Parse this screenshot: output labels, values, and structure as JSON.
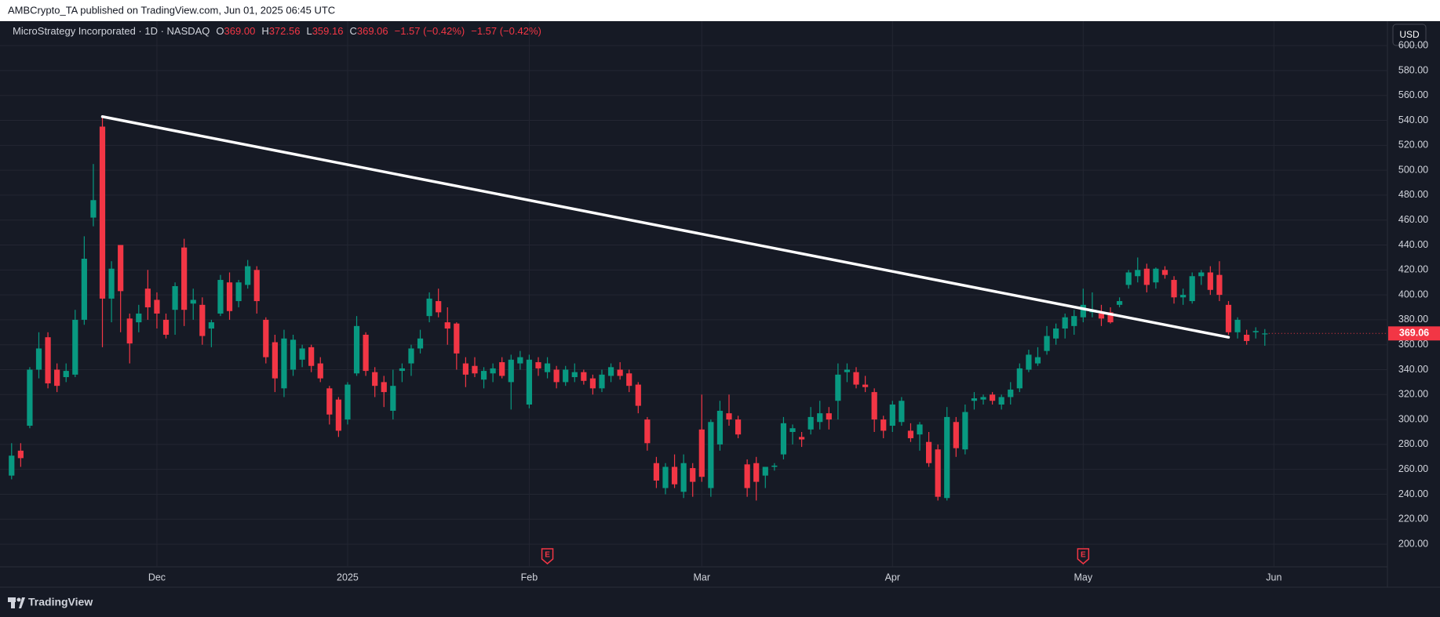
{
  "publisher_line": "AMBCrypto_TA published on TradingView.com, Jun 01, 2025 06:45 UTC",
  "header": {
    "symbol": "MicroStrategy Incorporated · 1D · NASDAQ",
    "quote": [
      {
        "label": "O",
        "value": "369.00"
      },
      {
        "label": "H",
        "value": "372.56"
      },
      {
        "label": "L",
        "value": "359.16"
      },
      {
        "label": "C",
        "value": "369.06"
      }
    ],
    "change": [
      "−1.57 (−0.42%)",
      "−1.57 (−0.42%)"
    ]
  },
  "currency_button": "USD",
  "footer_brand": "TradingView",
  "chart_data": {
    "type": "candlestick",
    "categories": [
      null,
      null,
      null,
      null,
      null,
      null,
      null,
      null,
      null,
      null,
      null,
      null,
      null,
      null,
      null,
      null,
      "Dec",
      null,
      null,
      null,
      null,
      null,
      null,
      null,
      null,
      null,
      null,
      null,
      null,
      null,
      null,
      null,
      null,
      null,
      null,
      null,
      null,
      "2025",
      null,
      null,
      null,
      null,
      null,
      null,
      null,
      null,
      null,
      null,
      null,
      null,
      null,
      null,
      null,
      null,
      null,
      null,
      null,
      "Feb",
      null,
      null,
      null,
      null,
      null,
      null,
      null,
      null,
      null,
      null,
      null,
      null,
      null,
      null,
      null,
      null,
      null,
      null,
      "Mar",
      null,
      null,
      null,
      null,
      null,
      null,
      null,
      null,
      null,
      null,
      null,
      null,
      null,
      null,
      null,
      null,
      null,
      null,
      null,
      null,
      "Apr",
      null,
      null,
      null,
      null,
      null,
      null,
      null,
      null,
      null,
      null,
      null,
      null,
      null,
      null,
      null,
      null,
      null,
      null,
      null,
      null,
      "May",
      null,
      null,
      null,
      null,
      null,
      null,
      null,
      null,
      null,
      null,
      null,
      null,
      null,
      null,
      null,
      null,
      null,
      null,
      null,
      null,
      "Jun",
      null,
      null,
      null,
      null,
      null,
      null,
      null,
      null,
      null,
      null,
      null,
      null
    ],
    "open": [
      255,
      275,
      295,
      340,
      366,
      340,
      334,
      336,
      380,
      462,
      535,
      397,
      440,
      381,
      378,
      405,
      396,
      380,
      388,
      438,
      393,
      392,
      373,
      385,
      410,
      395,
      408,
      420,
      380,
      362,
      325,
      340,
      348,
      358,
      345,
      325,
      316,
      300,
      337,
      368,
      338,
      330,
      307,
      339,
      345,
      357,
      383,
      395,
      378,
      377,
      345,
      343,
      332,
      337,
      346,
      330,
      345,
      312,
      346,
      338,
      340,
      330,
      334,
      338,
      333,
      325,
      335,
      340,
      337,
      328,
      300,
      265,
      245,
      262,
      242,
      261,
      292,
      245,
      280,
      305,
      300,
      264,
      265,
      255,
      262,
      272,
      290,
      286,
      292,
      298,
      305,
      315,
      338,
      338,
      328,
      322,
      300,
      295,
      298,
      291,
      288,
      282,
      276,
      237,
      298,
      276,
      315,
      316,
      320,
      312,
      318,
      325,
      340,
      345,
      355,
      365,
      373,
      375,
      382,
      386,
      385,
      386,
      392,
      408,
      415,
      421,
      410,
      420,
      412,
      398,
      395,
      415,
      418,
      416,
      392,
      370,
      368,
      370,
      369,
      null,
      null,
      null,
      null,
      null,
      null,
      null,
      null,
      null,
      null,
      null,
      null,
      null
    ],
    "high": [
      281,
      281,
      342,
      370,
      370,
      345,
      345,
      388,
      447,
      505,
      543,
      427,
      440,
      385,
      392,
      420,
      402,
      385,
      410,
      445,
      405,
      398,
      380,
      416,
      418,
      412,
      428,
      423,
      382,
      368,
      372,
      368,
      360,
      360,
      350,
      327,
      318,
      330,
      383,
      370,
      342,
      335,
      340,
      345,
      360,
      372,
      402,
      405,
      390,
      378,
      350,
      350,
      342,
      345,
      350,
      352,
      355,
      352,
      350,
      350,
      343,
      343,
      345,
      340,
      336,
      340,
      345,
      346,
      340,
      330,
      302,
      270,
      265,
      272,
      272,
      265,
      320,
      300,
      315,
      320,
      303,
      268,
      270,
      262,
      265,
      302,
      296,
      290,
      310,
      315,
      310,
      345,
      345,
      342,
      335,
      325,
      303,
      315,
      318,
      297,
      298,
      290,
      280,
      310,
      302,
      312,
      322,
      320,
      322,
      320,
      330,
      345,
      356,
      358,
      375,
      377,
      385,
      388,
      405,
      402,
      392,
      390,
      398,
      420,
      430,
      425,
      422,
      423,
      415,
      405,
      418,
      420,
      423,
      427,
      395,
      382,
      372,
      374,
      372.56,
      null,
      null,
      null,
      null,
      null,
      null,
      null,
      null,
      null,
      null,
      null,
      null,
      null
    ],
    "low": [
      252,
      262,
      293,
      333,
      325,
      322,
      330,
      334,
      376,
      455,
      358,
      378,
      370,
      345,
      370,
      380,
      373,
      365,
      368,
      375,
      380,
      360,
      358,
      383,
      380,
      390,
      405,
      385,
      345,
      322,
      318,
      335,
      342,
      338,
      330,
      296,
      286,
      296,
      335,
      335,
      318,
      310,
      300,
      330,
      335,
      353,
      378,
      382,
      360,
      340,
      326,
      334,
      325,
      330,
      333,
      308,
      340,
      309,
      335,
      333,
      325,
      327,
      330,
      328,
      320,
      322,
      330,
      332,
      322,
      305,
      275,
      245,
      240,
      245,
      237,
      238,
      250,
      238,
      275,
      295,
      285,
      238,
      235,
      245,
      259,
      268,
      280,
      278,
      288,
      292,
      292,
      300,
      330,
      325,
      322,
      290,
      285,
      290,
      295,
      282,
      275,
      262,
      235,
      235,
      270,
      272,
      308,
      312,
      312,
      308,
      312,
      322,
      338,
      343,
      352,
      360,
      365,
      368,
      378,
      382,
      375,
      377,
      390,
      405,
      410,
      402,
      405,
      413,
      393,
      392,
      393,
      408,
      400,
      395,
      368,
      365,
      360,
      365,
      359.16,
      null,
      null,
      null,
      null,
      null,
      null,
      null,
      null,
      null,
      null,
      null,
      null,
      null
    ],
    "close": [
      271,
      269,
      340,
      357,
      329,
      327,
      339,
      380,
      429,
      476,
      397,
      421,
      403,
      361,
      385,
      390,
      385,
      368,
      407,
      388,
      396,
      367,
      378,
      412,
      387,
      410,
      423,
      395,
      350,
      333,
      365,
      364,
      357,
      343,
      333,
      304,
      291,
      328,
      375,
      339,
      327,
      322,
      327,
      341,
      357,
      365,
      397,
      386,
      373,
      353,
      336,
      337,
      339,
      341,
      335,
      348,
      350,
      348,
      341,
      345,
      330,
      340,
      338,
      331,
      325,
      336,
      342,
      335,
      327,
      311,
      281,
      251,
      262,
      248,
      265,
      250,
      254,
      298,
      307,
      300,
      288,
      245,
      250,
      262,
      263,
      297,
      293,
      284,
      302,
      305,
      300,
      336,
      340,
      328,
      326,
      300,
      291,
      312,
      315,
      285,
      296,
      265,
      238,
      302,
      277,
      306,
      317,
      318,
      315,
      318,
      324,
      341,
      352,
      350,
      367,
      373,
      382,
      383,
      392,
      388,
      381,
      378,
      395,
      418,
      420,
      408,
      421,
      416,
      398,
      400,
      415,
      418,
      404,
      400,
      370,
      380,
      363,
      371,
      369.06,
      null,
      null,
      null,
      null,
      null,
      null,
      null,
      null,
      null,
      null,
      null,
      null,
      null
    ],
    "up_color": "#089981",
    "down_color": "#f23645",
    "ylim": [
      181.8,
      619.6
    ],
    "yticks": [
      {
        "value": 200,
        "label": "200.00"
      },
      {
        "value": 220,
        "label": "220.00"
      },
      {
        "value": 240,
        "label": "240.00"
      },
      {
        "value": 260,
        "label": "260.00"
      },
      {
        "value": 280,
        "label": "280.00"
      },
      {
        "value": 300,
        "label": "300.00"
      },
      {
        "value": 320,
        "label": "320.00"
      },
      {
        "value": 340,
        "label": "340.00"
      },
      {
        "value": 360,
        "label": "360.00"
      },
      {
        "value": 380,
        "label": "380.00"
      },
      {
        "value": 400,
        "label": "400.00"
      },
      {
        "value": 420,
        "label": "420.00"
      },
      {
        "value": 440,
        "label": "440.00"
      },
      {
        "value": 460,
        "label": "460.00"
      },
      {
        "value": 480,
        "label": "480.00"
      },
      {
        "value": 500,
        "label": "500.00"
      },
      {
        "value": 520,
        "label": "520.00"
      },
      {
        "value": 540,
        "label": "540.00"
      },
      {
        "value": 560,
        "label": "560.00"
      },
      {
        "value": 580,
        "label": "580.00"
      },
      {
        "value": 600,
        "label": "600.00"
      }
    ],
    "grid": true,
    "trendline": {
      "color": "#ffffff",
      "x": [
        10,
        134
      ],
      "y": [
        543,
        366
      ]
    },
    "events": [
      {
        "x": 59,
        "label": "E"
      },
      {
        "x": 118,
        "label": "E"
      }
    ],
    "last_price_label": "369.06"
  }
}
